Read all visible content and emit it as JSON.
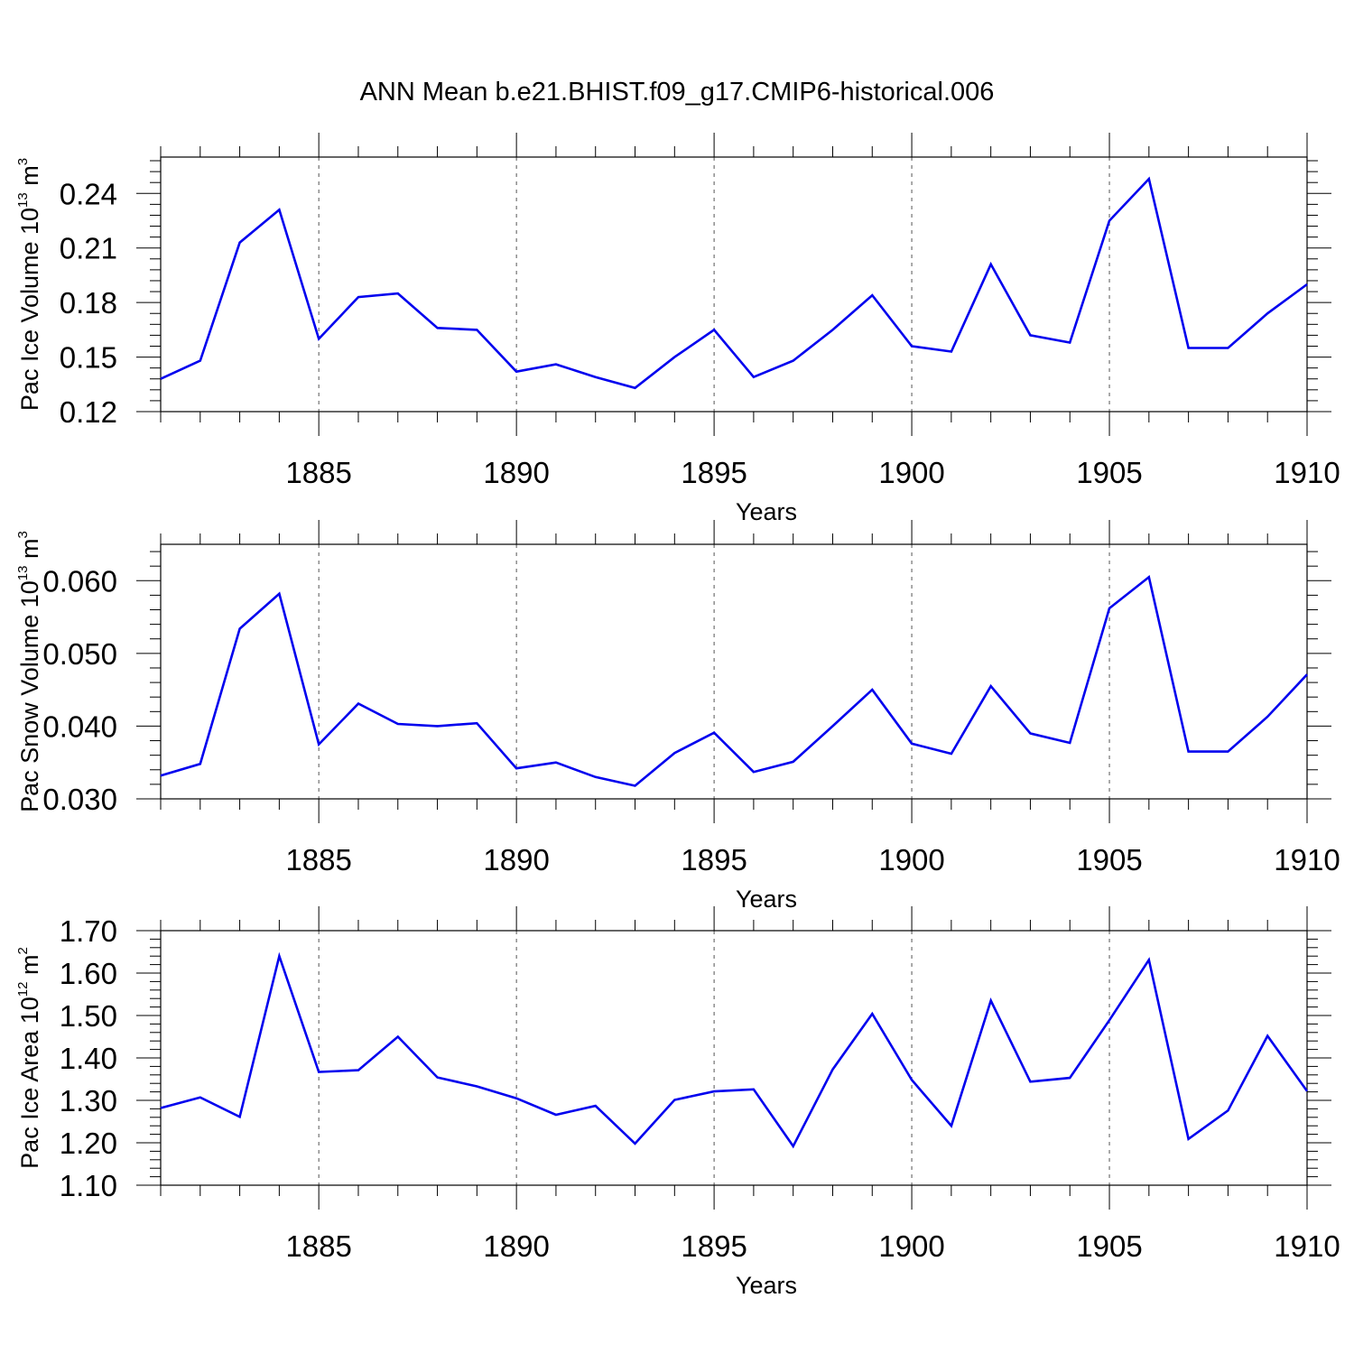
{
  "title": "ANN Mean b.e21.BHIST.f09_g17.CMIP6-historical.006",
  "colors": {
    "line": "#0000ee",
    "axis": "#000000",
    "grid": "#555555"
  },
  "chart_data": [
    {
      "type": "line",
      "title": "ANN Mean b.e21.BHIST.f09_g17.CMIP6-historical.006",
      "xlabel": "Years",
      "ylabel": {
        "text": "Pac Ice Volume 10",
        "exponent": "13",
        "unit": "m",
        "unit_exponent": "3"
      },
      "xlim": [
        1881,
        1910
      ],
      "ylim": [
        0.12,
        0.26
      ],
      "xticks": [
        "1885",
        "1890",
        "1895",
        "1900",
        "1905",
        "1910"
      ],
      "yticks": [
        "0.12",
        "0.15",
        "0.18",
        "0.21",
        "0.24"
      ],
      "grid": "vertical dashed at major x ticks",
      "x": [
        1881,
        1882,
        1883,
        1884,
        1885,
        1886,
        1887,
        1888,
        1889,
        1890,
        1891,
        1892,
        1893,
        1894,
        1895,
        1896,
        1897,
        1898,
        1899,
        1900,
        1901,
        1902,
        1903,
        1904,
        1905,
        1906,
        1907,
        1908,
        1909,
        1910
      ],
      "series": [
        {
          "name": "Pac Ice Volume",
          "values": [
            0.138,
            0.148,
            0.213,
            0.231,
            0.16,
            0.183,
            0.185,
            0.166,
            0.165,
            0.142,
            0.146,
            0.139,
            0.133,
            0.15,
            0.165,
            0.139,
            0.148,
            0.165,
            0.184,
            0.156,
            0.153,
            0.201,
            0.162,
            0.158,
            0.225,
            0.248,
            0.155,
            0.155,
            0.174,
            0.19
          ]
        }
      ]
    },
    {
      "type": "line",
      "xlabel": "Years",
      "ylabel": {
        "text": "Pac Snow Volume 10",
        "exponent": "13",
        "unit": "m",
        "unit_exponent": "3"
      },
      "xlim": [
        1881,
        1910
      ],
      "ylim": [
        0.03,
        0.065
      ],
      "xticks": [
        "1885",
        "1890",
        "1895",
        "1900",
        "1905",
        "1910"
      ],
      "yticks": [
        "0.030",
        "0.040",
        "0.050",
        "0.060"
      ],
      "grid": "vertical dashed at major x ticks",
      "x": [
        1881,
        1882,
        1883,
        1884,
        1885,
        1886,
        1887,
        1888,
        1889,
        1890,
        1891,
        1892,
        1893,
        1894,
        1895,
        1896,
        1897,
        1898,
        1899,
        1900,
        1901,
        1902,
        1903,
        1904,
        1905,
        1906,
        1907,
        1908,
        1909,
        1910
      ],
      "series": [
        {
          "name": "Pac Snow Volume",
          "values": [
            0.0332,
            0.0348,
            0.0534,
            0.0582,
            0.0375,
            0.0431,
            0.0403,
            0.04,
            0.0404,
            0.0342,
            0.035,
            0.033,
            0.0318,
            0.0363,
            0.0391,
            0.0337,
            0.0351,
            0.04,
            0.045,
            0.0376,
            0.0362,
            0.0455,
            0.039,
            0.0377,
            0.0562,
            0.0605,
            0.0365,
            0.0365,
            0.0413,
            0.0471
          ]
        }
      ]
    },
    {
      "type": "line",
      "xlabel": "Years",
      "ylabel": {
        "text": "Pac Ice Area 10",
        "exponent": "12",
        "unit": "m",
        "unit_exponent": "2"
      },
      "xlim": [
        1881,
        1910
      ],
      "ylim": [
        1.1,
        1.7
      ],
      "xticks": [
        "1885",
        "1890",
        "1895",
        "1900",
        "1905",
        "1910"
      ],
      "yticks": [
        "1.10",
        "1.20",
        "1.30",
        "1.40",
        "1.50",
        "1.60",
        "1.70"
      ],
      "grid": "vertical dashed at major x ticks",
      "x": [
        1881,
        1882,
        1883,
        1884,
        1885,
        1886,
        1887,
        1888,
        1889,
        1890,
        1891,
        1892,
        1893,
        1894,
        1895,
        1896,
        1897,
        1898,
        1899,
        1900,
        1901,
        1902,
        1903,
        1904,
        1905,
        1906,
        1907,
        1908,
        1909,
        1910
      ],
      "series": [
        {
          "name": "Pac Ice Area",
          "values": [
            1.282,
            1.307,
            1.261,
            1.64,
            1.367,
            1.371,
            1.45,
            1.354,
            1.333,
            1.305,
            1.266,
            1.287,
            1.198,
            1.301,
            1.321,
            1.326,
            1.192,
            1.373,
            1.504,
            1.348,
            1.24,
            1.535,
            1.344,
            1.353,
            1.489,
            1.631,
            1.209,
            1.276,
            1.452,
            1.322
          ]
        }
      ]
    }
  ]
}
